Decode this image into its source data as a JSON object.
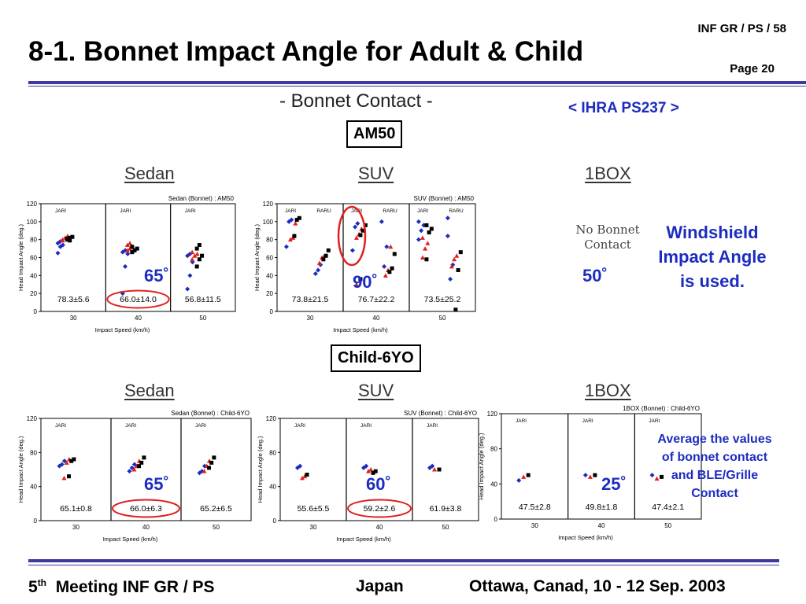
{
  "slide": {
    "title": "8-1. Bonnet Impact Angle for Adult & Child",
    "top_ref": "INF GR / PS / 58",
    "page": "Page 20",
    "bonnet_header": "- Bonnet Contact -",
    "ihra": "< IHRA PS237 >",
    "am50_label": "AM50",
    "child_label": "Child-6YO",
    "cat_sedan": "Sedan",
    "cat_suv": "SUV",
    "cat_1box": "1BOX",
    "no_bonnet": [
      "No Bonnet",
      "Contact"
    ],
    "windshield_note": [
      "Windshield",
      "Impact Angle",
      "is used."
    ],
    "average_note": [
      "Average the values",
      "of bonnet contact",
      "and BLE/Grille",
      "Contact"
    ],
    "angles": {
      "am50_sedan": "65˚",
      "am50_suv": "90˚",
      "am50_1box": "50˚",
      "child_sedan": "65˚",
      "child_suv": "60˚",
      "child_1box": "25˚"
    }
  },
  "footer": {
    "meeting_num": "5",
    "meeting_sup": "th",
    "meeting": "Meeting INF GR / PS",
    "country": "Japan",
    "venue": "Ottawa, Canad, 10 - 12 Sep. 2003"
  },
  "colors": {
    "blue": "#1d2cc0",
    "red": "#e0201e",
    "black": "#000000",
    "rule": "#3b3b9f"
  },
  "chart_data": [
    {
      "id": "am50-sedan",
      "type": "scatter",
      "title": "Sedan (Bonnet) : AM50",
      "ylabel": "Head Impact Angle (deg.)",
      "xlabel": "Impact Speed (km/h)",
      "ylim": [
        0,
        120
      ],
      "yticks": [
        0,
        20,
        40,
        60,
        80,
        100,
        120
      ],
      "xticks": [
        "30",
        "40",
        "50"
      ],
      "panel_labels": [
        [
          "JARI"
        ],
        [
          "JARI"
        ],
        [
          "JARI"
        ]
      ],
      "stats": [
        "78.3±5.6",
        "66.0±14.0",
        "56.8±11.5"
      ],
      "circled_stat": 1,
      "panels": [
        {
          "blue": [
            65,
            72,
            74,
            76,
            78
          ],
          "red": [
            80,
            82,
            84,
            79
          ],
          "black": [
            80,
            82,
            83,
            81,
            79
          ]
        },
        {
          "blue": [
            20,
            50,
            64,
            66,
            68
          ],
          "red": [
            68,
            70,
            72,
            74,
            76
          ],
          "black": [
            66,
            68,
            70,
            72
          ]
        },
        {
          "blue": [
            25,
            40,
            55,
            62,
            64
          ],
          "red": [
            58,
            62,
            64,
            66
          ],
          "black": [
            50,
            58,
            62,
            70,
            74
          ]
        }
      ]
    },
    {
      "id": "am50-suv",
      "type": "scatter",
      "title": "SUV (Bonnet) : AM50",
      "ylabel": "Head Impact Angle (deg.)",
      "xlabel": "Impact Speed (km/h)",
      "ylim": [
        0,
        120
      ],
      "yticks": [
        0,
        20,
        40,
        60,
        80,
        100,
        120
      ],
      "xticks": [
        "30",
        "40",
        "50"
      ],
      "panel_labels": [
        [
          "JARI",
          "RARU"
        ],
        [
          "JARI",
          "RARU"
        ],
        [
          "JARI",
          "RARU"
        ]
      ],
      "stats": [
        "73.8±21.5",
        "76.7±22.2",
        "73.5±25.2"
      ],
      "circled_stat": -1,
      "panels": [
        {
          "blue": [
            72,
            100,
            102,
            42,
            46,
            52
          ],
          "red": [
            80,
            82,
            98,
            54,
            60,
            62
          ],
          "black": [
            84,
            102,
            104,
            58,
            62,
            68
          ]
        },
        {
          "blue": [
            68,
            94,
            98,
            100,
            50,
            72
          ],
          "red": [
            82,
            86,
            92,
            30,
            40,
            46,
            72
          ],
          "black": [
            85,
            90,
            96,
            36,
            44,
            48,
            64
          ]
        },
        {
          "blue": [
            80,
            90,
            96,
            100,
            104,
            36,
            52,
            84
          ],
          "red": [
            60,
            70,
            76,
            82,
            50,
            58,
            62
          ],
          "black": [
            58,
            88,
            92,
            96,
            2,
            46,
            66
          ]
        }
      ]
    },
    {
      "id": "child-sedan",
      "type": "scatter",
      "title": "Sedan (Bonnet) : Child-6YO",
      "ylabel": "Head Impact Angle (deg.)",
      "xlabel": "Impact Speed (km/h)",
      "ylim": [
        0,
        120
      ],
      "yticks": [
        0,
        40,
        80,
        120
      ],
      "xticks": [
        "30",
        "40",
        "50"
      ],
      "panel_labels": [
        [
          "JARI"
        ],
        [
          "JARI"
        ],
        [
          "JARI"
        ]
      ],
      "stats": [
        "65.1±0.8",
        "66.0±6.3",
        "65.2±6.5"
      ],
      "circled_stat": 1,
      "panels": [
        {
          "blue": [
            64,
            66,
            70
          ],
          "red": [
            50,
            68,
            72
          ],
          "black": [
            52,
            70,
            72
          ]
        },
        {
          "blue": [
            58,
            62,
            66
          ],
          "red": [
            60,
            64,
            70
          ],
          "black": [
            64,
            68,
            74
          ]
        },
        {
          "blue": [
            56,
            58,
            64
          ],
          "red": [
            58,
            64,
            70
          ],
          "black": [
            62,
            68,
            74
          ]
        }
      ]
    },
    {
      "id": "child-suv",
      "type": "scatter",
      "title": "SUV (Bonnet) : Child-6YO",
      "ylabel": "Head Impact Angle (deg.)",
      "xlabel": "Impact Speed (km/h)",
      "ylim": [
        0,
        120
      ],
      "yticks": [
        0,
        40,
        80,
        120
      ],
      "xticks": [
        "30",
        "40",
        "50"
      ],
      "panel_labels": [
        [
          "JARI"
        ],
        [
          "JARI"
        ],
        [
          "JARI"
        ]
      ],
      "stats": [
        "55.6±5.5",
        "59.2±2.6",
        "61.9±3.8"
      ],
      "circled_stat": 1,
      "panels": [
        {
          "blue": [
            62,
            64
          ],
          "red": [
            50,
            52
          ],
          "black": [
            54
          ]
        },
        {
          "blue": [
            62,
            64
          ],
          "red": [
            58,
            60
          ],
          "black": [
            56,
            58
          ]
        },
        {
          "blue": [
            62,
            64
          ],
          "red": [
            60
          ],
          "black": [
            60
          ]
        }
      ]
    },
    {
      "id": "child-1box",
      "type": "scatter",
      "title": "1BOX (Bonnet) : Child-6YO",
      "ylabel": "Head Impact Angle (deg.)",
      "xlabel": "Impact Speed (km/h)",
      "ylim": [
        0,
        120
      ],
      "yticks": [
        0,
        40,
        80,
        120
      ],
      "xticks": [
        "30",
        "40",
        "50"
      ],
      "panel_labels": [
        [
          "JARI"
        ],
        [
          "JARI"
        ],
        [
          "JARI"
        ]
      ],
      "stats": [
        "47.5±2.8",
        "49.8±1.8",
        "47.4±2.1"
      ],
      "circled_stat": -1,
      "panels": [
        {
          "blue": [
            44
          ],
          "red": [
            48
          ],
          "black": [
            50
          ]
        },
        {
          "blue": [
            50
          ],
          "red": [
            48
          ],
          "black": [
            50
          ]
        },
        {
          "blue": [
            50
          ],
          "red": [
            46
          ],
          "black": [
            48
          ]
        }
      ]
    }
  ]
}
